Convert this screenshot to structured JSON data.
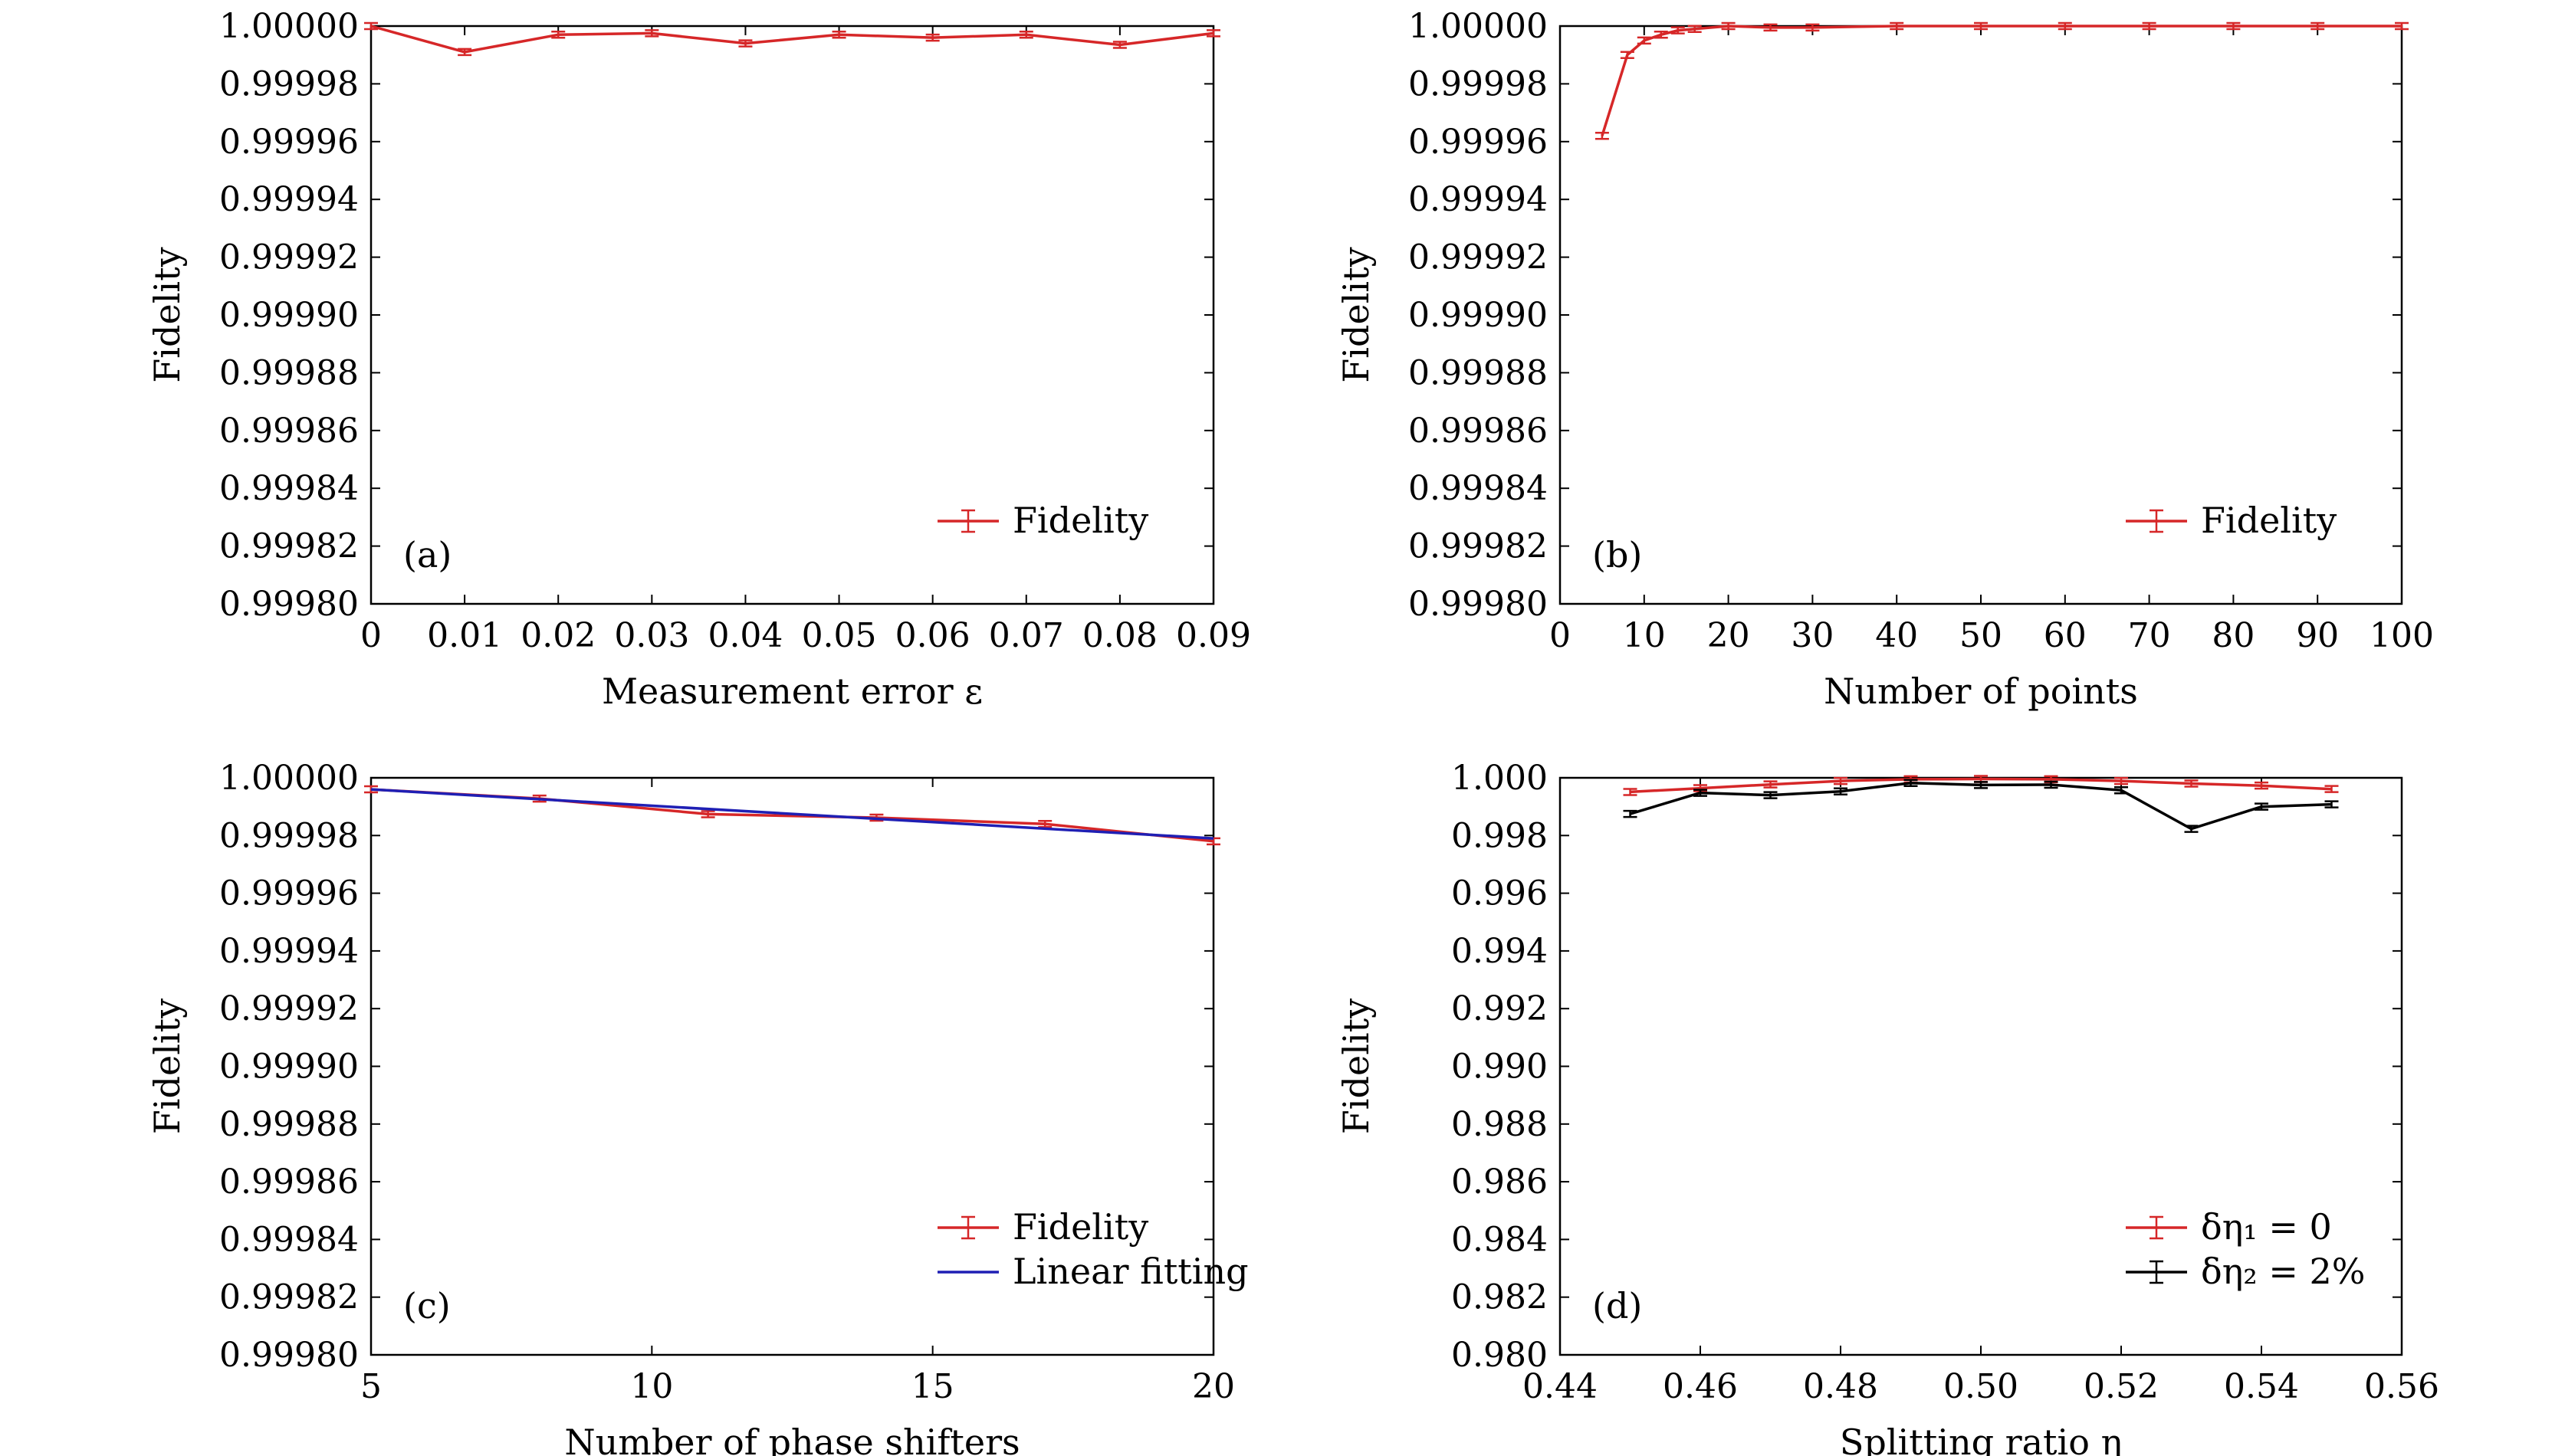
{
  "chart_data": [
    {
      "type": "line",
      "panel_label": "(a)",
      "xlabel": "Measurement error ε",
      "ylabel": "Fidelity",
      "xlim": [
        0,
        0.09
      ],
      "ylim": [
        0.9998,
        1.0
      ],
      "x_ticks": [
        "0",
        "0.01",
        "0.02",
        "0.03",
        "0.04",
        "0.05",
        "0.06",
        "0.07",
        "0.08",
        "0.09"
      ],
      "y_ticks": [
        "0.99980",
        "0.99982",
        "0.99984",
        "0.99986",
        "0.99988",
        "0.99990",
        "0.99992",
        "0.99994",
        "0.99996",
        "0.99998",
        "1.00000"
      ],
      "legend_position": "lower-right",
      "grid": false,
      "series": [
        {
          "name": "Fidelity",
          "color": "#d62728",
          "errorbars": true,
          "x": [
            0,
            0.01,
            0.02,
            0.03,
            0.04,
            0.05,
            0.06,
            0.07,
            0.08,
            0.09
          ],
          "values": [
            1.0,
            0.999991,
            0.999997,
            0.9999975,
            0.999994,
            0.999997,
            0.999996,
            0.999997,
            0.9999935,
            0.9999975
          ]
        }
      ]
    },
    {
      "type": "line",
      "panel_label": "(b)",
      "xlabel": "Number of points",
      "ylabel": "Fidelity",
      "xlim": [
        0,
        100
      ],
      "ylim": [
        0.9998,
        1.0
      ],
      "x_ticks": [
        "0",
        "10",
        "20",
        "30",
        "40",
        "50",
        "60",
        "70",
        "80",
        "90",
        "100"
      ],
      "y_ticks": [
        "0.99980",
        "0.99982",
        "0.99984",
        "0.99986",
        "0.99988",
        "0.99990",
        "0.99992",
        "0.99994",
        "0.99996",
        "0.99998",
        "1.00000"
      ],
      "legend_position": "lower-right",
      "grid": false,
      "series": [
        {
          "name": "Fidelity",
          "color": "#d62728",
          "errorbars": true,
          "x": [
            5,
            8,
            10,
            12,
            14,
            16,
            20,
            25,
            30,
            40,
            50,
            60,
            70,
            80,
            90,
            100
          ],
          "values": [
            0.999962,
            0.99999,
            0.999995,
            0.999997,
            0.9999985,
            0.999999,
            1.0,
            0.9999995,
            0.9999995,
            1.0,
            1.0,
            1.0,
            1.0,
            1.0,
            1.0,
            1.0
          ]
        }
      ]
    },
    {
      "type": "line",
      "panel_label": "(c)",
      "xlabel": "Number of phase shifters",
      "ylabel": "Fidelity",
      "xlim": [
        5,
        20
      ],
      "ylim": [
        0.9998,
        1.0
      ],
      "x_ticks": [
        "5",
        "10",
        "15",
        "20"
      ],
      "y_ticks": [
        "0.99980",
        "0.99982",
        "0.99984",
        "0.99986",
        "0.99988",
        "0.99990",
        "0.99992",
        "0.99994",
        "0.99996",
        "0.99998",
        "1.00000"
      ],
      "legend_position": "lower-right",
      "grid": false,
      "series": [
        {
          "name": "Fidelity",
          "color": "#d62728",
          "errorbars": true,
          "x": [
            5,
            8,
            11,
            14,
            17,
            20
          ],
          "values": [
            0.999996,
            0.9999928,
            0.9999874,
            0.9999862,
            0.999984,
            0.999978
          ]
        },
        {
          "name": "Linear fitting",
          "color": "#1f1fb4",
          "errorbars": false,
          "x": [
            5,
            20
          ],
          "values": [
            0.999996,
            0.999979
          ]
        }
      ]
    },
    {
      "type": "line",
      "panel_label": "(d)",
      "xlabel": "Splitting ratio η",
      "ylabel": "Fidelity",
      "xlim": [
        0.44,
        0.56
      ],
      "ylim": [
        0.98,
        1.0
      ],
      "x_ticks": [
        "0.44",
        "0.46",
        "0.48",
        "0.50",
        "0.52",
        "0.54",
        "0.56"
      ],
      "y_ticks": [
        "0.980",
        "0.982",
        "0.984",
        "0.986",
        "0.988",
        "0.990",
        "0.992",
        "0.994",
        "0.996",
        "0.998",
        "1.000"
      ],
      "legend_position": "lower-right",
      "grid": false,
      "series": [
        {
          "name": "δη₁ = 0",
          "color": "#d62728",
          "errorbars": true,
          "x": [
            0.45,
            0.46,
            0.47,
            0.48,
            0.49,
            0.5,
            0.51,
            0.52,
            0.53,
            0.54,
            0.55
          ],
          "values": [
            0.99951,
            0.99964,
            0.99977,
            0.99989,
            0.99995,
            0.99996,
            0.99995,
            0.99989,
            0.9998,
            0.99973,
            0.99961
          ]
        },
        {
          "name": "δη₂ = 2%",
          "color": "#000000",
          "errorbars": true,
          "x": [
            0.45,
            0.46,
            0.47,
            0.48,
            0.49,
            0.5,
            0.51,
            0.52,
            0.53,
            0.54,
            0.55
          ],
          "values": [
            0.99875,
            0.99948,
            0.9994,
            0.99953,
            0.99982,
            0.99975,
            0.99976,
            0.99957,
            0.99823,
            0.999,
            0.99908
          ]
        }
      ]
    }
  ]
}
